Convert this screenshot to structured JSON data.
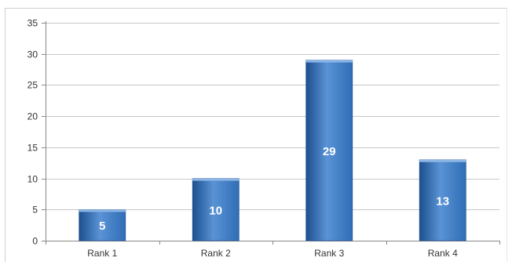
{
  "chart_data": {
    "type": "bar",
    "title": "",
    "xlabel": "",
    "ylabel": "",
    "categories": [
      "Rank 1",
      "Rank 2",
      "Rank 3",
      "Rank 4"
    ],
    "values": [
      5,
      10,
      29,
      13
    ],
    "data_labels": [
      "5",
      "10",
      "29",
      "13"
    ],
    "ylim": [
      0,
      35
    ],
    "yticks": [
      0,
      5,
      10,
      15,
      20,
      25,
      30,
      35
    ],
    "grid": true,
    "legend": "none",
    "bar_color": "#2f6db5",
    "bar_color_light": "#5a93d6",
    "bar_color_dark": "#1c4f8e",
    "gridline_color": "#c8c8c8"
  }
}
